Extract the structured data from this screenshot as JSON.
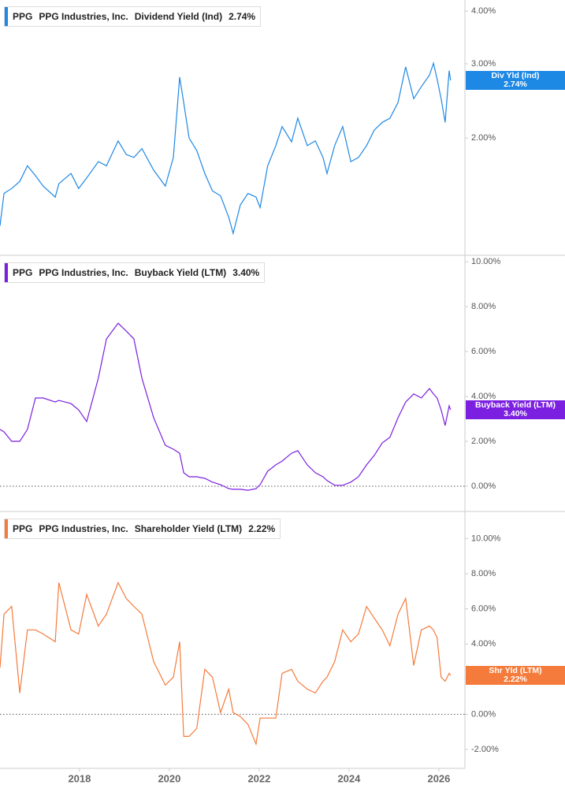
{
  "chart_data": [
    {
      "type": "line",
      "log_scale": true,
      "ticker": "PPG",
      "company": "PPG Industries, Inc.",
      "metric": "Dividend Yield (Ind)",
      "header_value": "2.74%",
      "badge_name": "Div Yld (Ind)",
      "badge_value": "2.74%",
      "x": [
        2016.23,
        2016.32,
        2016.49,
        2016.67,
        2016.84,
        2017.02,
        2017.19,
        2017.46,
        2017.54,
        2017.81,
        2017.98,
        2018.16,
        2018.42,
        2018.6,
        2018.86,
        2019.04,
        2019.21,
        2019.39,
        2019.65,
        2019.91,
        2020.09,
        2020.23,
        2020.32,
        2020.44,
        2020.61,
        2020.79,
        2020.96,
        2021.14,
        2021.32,
        2021.42,
        2021.58,
        2021.75,
        2021.93,
        2022.02,
        2022.19,
        2022.37,
        2022.51,
        2022.72,
        2022.86,
        2023.07,
        2023.25,
        2023.42,
        2023.51,
        2023.68,
        2023.86,
        2024.04,
        2024.21,
        2024.39,
        2024.56,
        2024.74,
        2024.91,
        2025.09,
        2025.26,
        2025.44,
        2025.61,
        2025.79,
        2025.88,
        2025.96,
        2026.05,
        2026.14,
        2026.23,
        2026.26
      ],
      "series": [
        {
          "name": "Dividend Yield (Ind)",
          "color": "#1e88e5",
          "values": [
            1.24,
            1.48,
            1.52,
            1.58,
            1.72,
            1.63,
            1.54,
            1.45,
            1.56,
            1.65,
            1.52,
            1.61,
            1.76,
            1.72,
            1.97,
            1.83,
            1.8,
            1.89,
            1.68,
            1.54,
            1.8,
            2.79,
            2.43,
            2.0,
            1.87,
            1.65,
            1.5,
            1.46,
            1.3,
            1.19,
            1.39,
            1.48,
            1.45,
            1.37,
            1.72,
            1.92,
            2.13,
            1.96,
            2.23,
            1.92,
            1.97,
            1.8,
            1.65,
            1.92,
            2.13,
            1.76,
            1.8,
            1.92,
            2.09,
            2.18,
            2.23,
            2.43,
            2.95,
            2.48,
            2.65,
            2.82,
            3.01,
            2.76,
            2.48,
            2.18,
            2.89,
            2.74
          ]
        }
      ],
      "xlim": [
        2016.23,
        2026.58
      ],
      "ylim": [
        1.06,
        4.25
      ],
      "yticks": [
        {
          "value": 2,
          "label": "2.00%"
        },
        {
          "value": 3,
          "label": "3.00%"
        },
        {
          "value": 4,
          "label": "4.00%"
        }
      ]
    },
    {
      "type": "line",
      "zero_line": true,
      "ticker": "PPG",
      "company": "PPG Industries, Inc.",
      "metric": "Buyback Yield (LTM)",
      "header_value": "3.40%",
      "badge_name": "Buyback Yield (LTM)",
      "badge_value": "3.40%",
      "x": [
        2016.23,
        2016.32,
        2016.49,
        2016.67,
        2016.84,
        2017.02,
        2017.19,
        2017.46,
        2017.54,
        2017.81,
        2017.98,
        2018.16,
        2018.42,
        2018.6,
        2018.86,
        2019.04,
        2019.21,
        2019.39,
        2019.65,
        2019.91,
        2020.09,
        2020.23,
        2020.32,
        2020.44,
        2020.61,
        2020.79,
        2020.96,
        2021.14,
        2021.32,
        2021.42,
        2021.58,
        2021.75,
        2021.93,
        2022.02,
        2022.19,
        2022.37,
        2022.51,
        2022.72,
        2022.86,
        2023.07,
        2023.25,
        2023.42,
        2023.51,
        2023.68,
        2023.86,
        2024.04,
        2024.21,
        2024.39,
        2024.56,
        2024.74,
        2024.91,
        2025.09,
        2025.26,
        2025.44,
        2025.61,
        2025.79,
        2025.88,
        2025.96,
        2026.05,
        2026.14,
        2026.23,
        2026.26
      ],
      "series": [
        {
          "name": "Buyback Yield (LTM)",
          "color": "#7b1fe0",
          "values": [
            2.53,
            2.42,
            2.0,
            2.0,
            2.53,
            3.93,
            3.93,
            3.75,
            3.82,
            3.68,
            3.4,
            2.88,
            4.81,
            6.56,
            7.26,
            6.91,
            6.56,
            4.81,
            3.05,
            1.82,
            1.65,
            1.47,
            0.6,
            0.42,
            0.42,
            0.35,
            0.18,
            0.07,
            -0.11,
            -0.14,
            -0.14,
            -0.18,
            -0.11,
            0.07,
            0.67,
            0.95,
            1.12,
            1.47,
            1.58,
            0.95,
            0.6,
            0.42,
            0.25,
            0.04,
            0.04,
            0.18,
            0.42,
            0.95,
            1.37,
            1.93,
            2.18,
            3.05,
            3.75,
            4.11,
            3.93,
            4.35,
            4.11,
            3.93,
            3.4,
            2.7,
            3.58,
            3.4
          ]
        }
      ],
      "xlim": [
        2016.23,
        2026.58
      ],
      "ylim": [
        -1.09,
        10.25
      ],
      "yticks": [
        {
          "value": 0,
          "label": "0.00%"
        },
        {
          "value": 2,
          "label": "2.00%"
        },
        {
          "value": 4,
          "label": "4.00%"
        },
        {
          "value": 6,
          "label": "6.00%"
        },
        {
          "value": 8,
          "label": "8.00%"
        },
        {
          "value": 10,
          "label": "10.00%"
        }
      ]
    },
    {
      "type": "line",
      "zero_line": true,
      "ticker": "PPG",
      "company": "PPG Industries, Inc.",
      "metric": "Shareholder Yield (LTM)",
      "header_value": "2.22%",
      "badge_name": "Shr Yld (LTM)",
      "badge_value": "2.22%",
      "x": [
        2016.23,
        2016.32,
        2016.49,
        2016.67,
        2016.84,
        2017.02,
        2017.19,
        2017.46,
        2017.54,
        2017.81,
        2017.98,
        2018.16,
        2018.42,
        2018.6,
        2018.86,
        2019.04,
        2019.21,
        2019.39,
        2019.65,
        2019.91,
        2020.09,
        2020.23,
        2020.32,
        2020.44,
        2020.61,
        2020.79,
        2020.96,
        2021.14,
        2021.32,
        2021.42,
        2021.58,
        2021.75,
        2021.93,
        2022.02,
        2022.19,
        2022.37,
        2022.51,
        2022.72,
        2022.86,
        2023.07,
        2023.25,
        2023.42,
        2023.51,
        2023.68,
        2023.86,
        2024.04,
        2024.21,
        2024.39,
        2024.56,
        2024.74,
        2024.91,
        2025.09,
        2025.26,
        2025.44,
        2025.61,
        2025.79,
        2025.88,
        2025.96,
        2026.05,
        2026.14,
        2026.23,
        2026.26
      ],
      "series": [
        {
          "name": "Shareholder Yield (LTM)",
          "color": "#f47b3b",
          "values": [
            2.65,
            5.7,
            6.14,
            1.21,
            4.8,
            4.8,
            4.57,
            4.13,
            7.49,
            4.8,
            4.57,
            6.82,
            5.02,
            5.7,
            7.49,
            6.59,
            6.14,
            5.7,
            3.0,
            1.66,
            2.11,
            4.13,
            -1.26,
            -1.26,
            -0.81,
            2.56,
            2.11,
            0.09,
            1.43,
            0.09,
            -0.13,
            -0.58,
            -1.7,
            -0.22,
            -0.22,
            -0.22,
            2.33,
            2.56,
            1.88,
            1.43,
            1.21,
            1.88,
            2.11,
            3.0,
            4.8,
            4.13,
            4.57,
            6.14,
            5.47,
            4.8,
            3.9,
            5.7,
            6.59,
            2.78,
            4.8,
            5.02,
            4.8,
            4.35,
            2.11,
            1.88,
            2.33,
            2.22
          ]
        }
      ],
      "xlim": [
        2016.23,
        2026.58
      ],
      "ylim": [
        -3.08,
        11.5
      ],
      "yticks": [
        {
          "value": -2,
          "label": "-2.00%"
        },
        {
          "value": 0,
          "label": "0.00%"
        },
        {
          "value": 2,
          "label": "2.00%"
        },
        {
          "value": 4,
          "label": "4.00%"
        },
        {
          "value": 6,
          "label": "6.00%"
        },
        {
          "value": 8,
          "label": "8.00%"
        },
        {
          "value": 10,
          "label": "10.00%"
        }
      ],
      "xticks": [
        2018,
        2020,
        2022,
        2024,
        2026
      ]
    }
  ]
}
